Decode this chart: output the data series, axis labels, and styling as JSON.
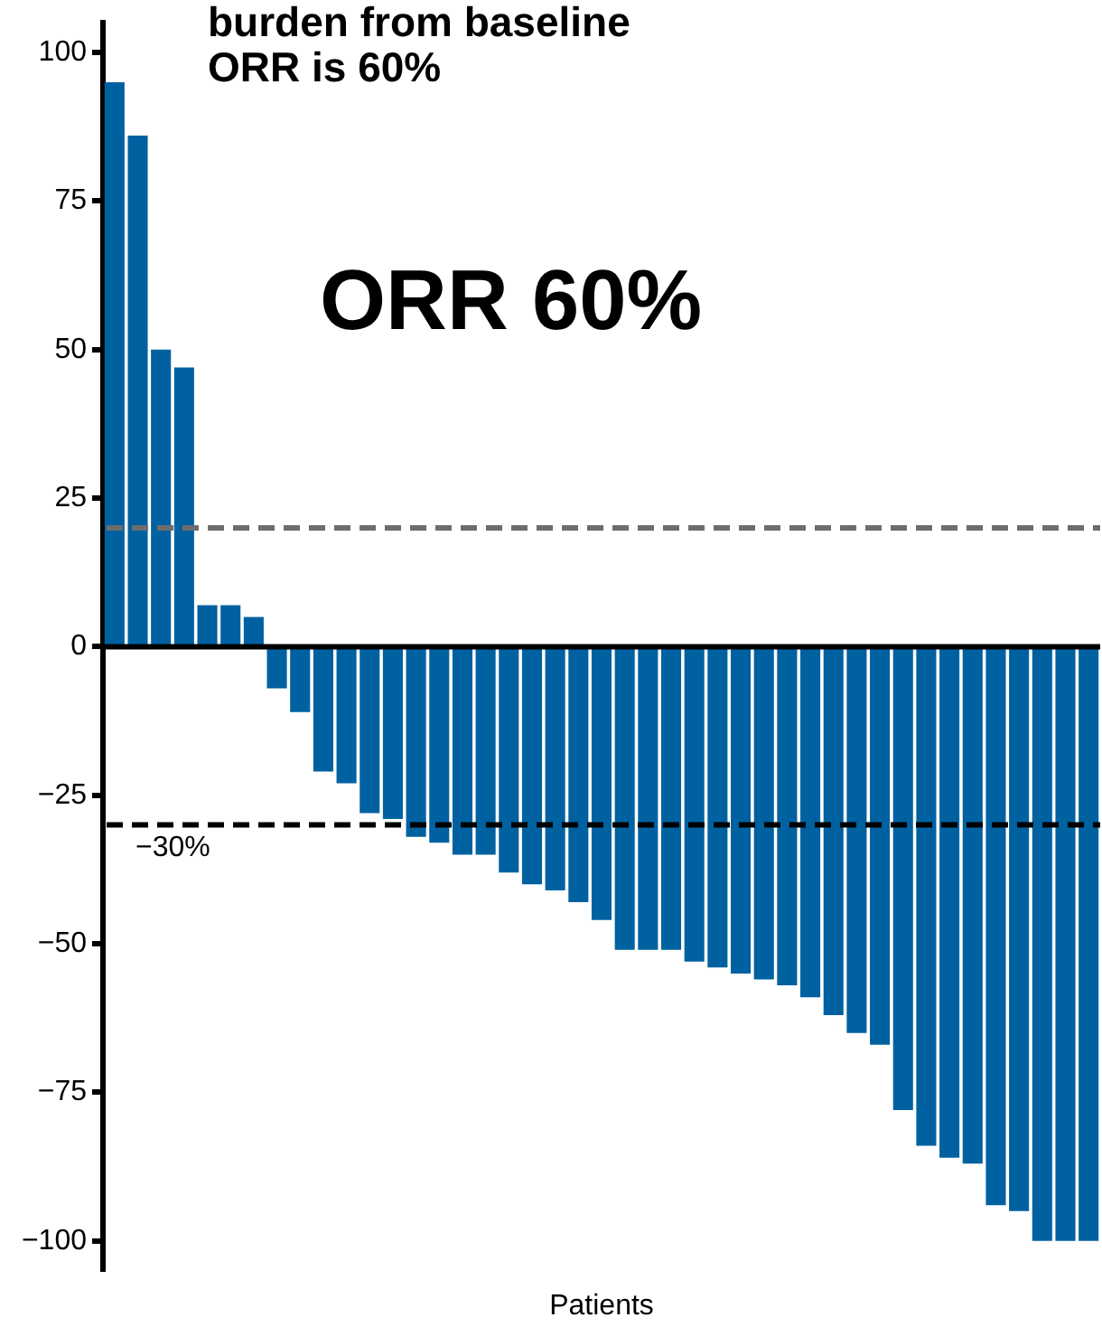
{
  "chart_data": {
    "type": "bar",
    "title": "burden from baseline\nORR is 60%",
    "xlabel": "Patients",
    "categories": [
      null,
      null,
      null,
      null,
      null,
      null,
      null,
      null,
      null,
      null,
      null,
      null,
      null,
      null,
      null,
      null,
      null,
      null,
      null,
      null,
      null,
      null,
      null,
      null,
      null,
      null,
      null,
      null,
      null,
      null,
      null,
      null,
      null,
      null,
      null,
      null,
      null,
      null,
      null,
      null,
      null,
      null,
      null
    ],
    "values": [
      95,
      86,
      50,
      47,
      7,
      7,
      5,
      -7,
      -11,
      -21,
      -23,
      -28,
      -29,
      -32,
      -33,
      -35,
      -35,
      -38,
      -40,
      -41,
      -43,
      -46,
      -51,
      -51,
      -51,
      -53,
      -54,
      -55,
      -56,
      -57,
      -59,
      -62,
      -65,
      -67,
      -78,
      -84,
      -86,
      -87,
      -94,
      -95,
      -100,
      -100,
      -100
    ],
    "color": "#0061a1",
    "ylim": [
      -105,
      105
    ],
    "yticks": [
      {
        "value": -100,
        "label": "−100"
      },
      {
        "value": -75,
        "label": "−75"
      },
      {
        "value": -50,
        "label": "−50"
      },
      {
        "value": -25,
        "label": "−25"
      },
      0,
      25,
      50,
      75,
      100
    ],
    "ref_lines": [
      {
        "axis": "y",
        "value": 20,
        "color": "#6d6d6d",
        "line_style": "dashed"
      },
      {
        "axis": "y",
        "value": -30,
        "label": "−30%",
        "color": "#000000",
        "line_style": "dashed"
      }
    ],
    "annotations": [
      "ORR 60%"
    ]
  }
}
